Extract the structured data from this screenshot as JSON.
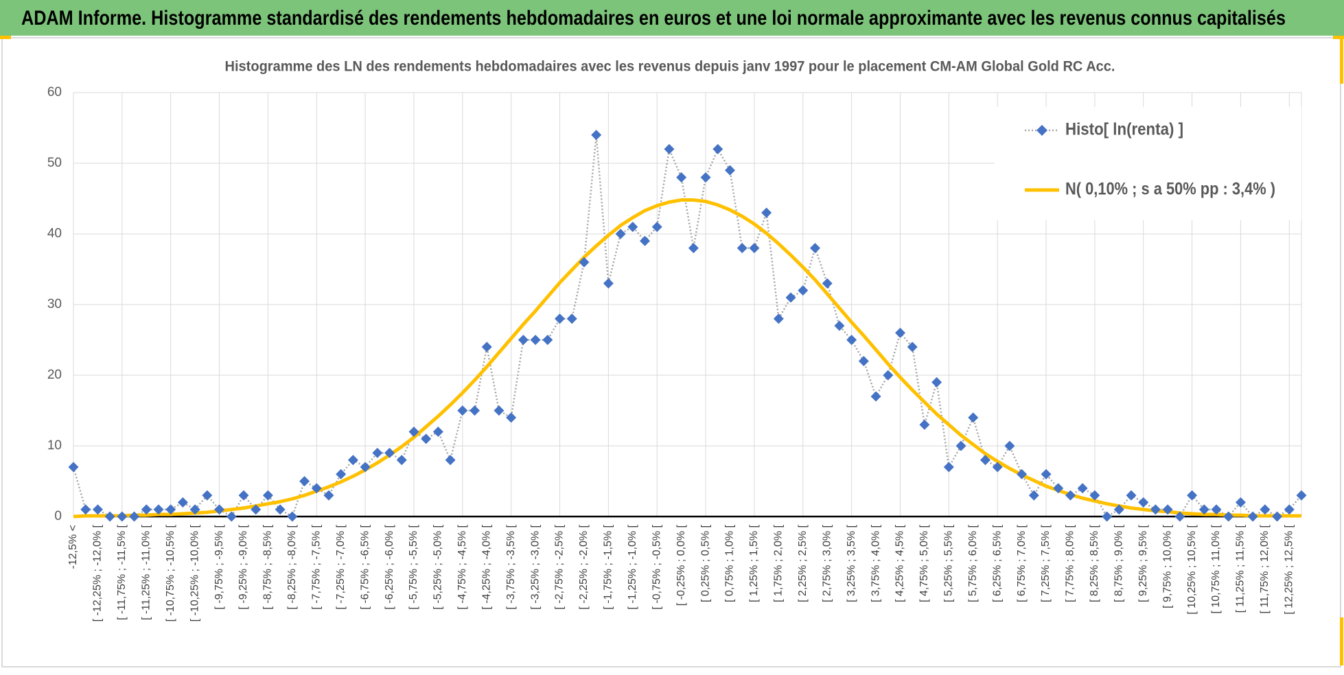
{
  "chart_data": {
    "type": "line",
    "title": "ADAM Informe. Histogramme standardisé des rendements hebdomadaires en euros et une loi normale approximante avec les revenus connus capitalisés",
    "subtitle": "Histogramme des LN des rendements hebdomadaires avec les revenus depuis janv 1997 pour le placement CM-AM Global Gold RC Acc.",
    "categories": [
      "-12,5% <",
      null,
      "[ -12,25% ; -12,0% [",
      null,
      "[ -11,75% ; -11,5% [",
      null,
      "[ -11,25% ; -11,0% [",
      null,
      "[ -10,75% ; -10,5% [",
      null,
      "[ -10,25% ; -10,0% [",
      null,
      "[ -9,75% ; -9,5% [",
      null,
      "[ -9,25% ; -9,0% [",
      null,
      "[ -8,75% ; -8,5% [",
      null,
      "[ -8,25% ; -8,0% [",
      null,
      "[ -7,75% ; -7,5% [",
      null,
      "[ -7,25% ; -7,0% [",
      null,
      "[ -6,75% ; -6,5% [",
      null,
      "[ -6,25% ; -6,0% [",
      null,
      "[ -5,75% ; -5,5% [",
      null,
      "[ -5,25% ; -5,0% [",
      null,
      "[ -4,75% ; -4,5% [",
      null,
      "[ -4,25% ; -4,0% [",
      null,
      "[ -3,75% ; -3,5% [",
      null,
      "[ -3,25% ; -3,0% [",
      null,
      "[ -2,75% ; -2,5% [",
      null,
      "[ -2,25% ; -2,0% [",
      null,
      "[ -1,75% ; -1,5% [",
      null,
      "[ -1,25% ; -1,0% [",
      null,
      "[ -0,75% ; -0,5% [",
      null,
      "[ -0,25% ; 0,0% [",
      null,
      "[ 0,25% ; 0,5% [",
      null,
      "[ 0,75% ; 1,0% [",
      null,
      "[ 1,25% ; 1,5% [",
      null,
      "[ 1,75% ; 2,0% [",
      null,
      "[ 2,25% ; 2,5% [",
      null,
      "[ 2,75% ; 3,0% [",
      null,
      "[ 3,25% ; 3,5% [",
      null,
      "[ 3,75% ; 4,0% [",
      null,
      "[ 4,25% ; 4,5% [",
      null,
      "[ 4,75% ; 5,0% [",
      null,
      "[ 5,25% ; 5,5% [",
      null,
      "[ 5,75% ; 6,0% [",
      null,
      "[ 6,25% ; 6,5% [",
      null,
      "[ 6,75% ; 7,0% [",
      null,
      "[ 7,25% ; 7,5% [",
      null,
      "[ 7,75% ; 8,0% [",
      null,
      "[ 8,25% ; 8,5% [",
      null,
      "[ 8,75% ; 9,0% [",
      null,
      "[ 9,25% ; 9,5% [",
      null,
      "[ 9,75% ; 10,0% [",
      null,
      "[ 10,25% ; 10,5% [",
      null,
      "[ 10,75% ; 11,0% [",
      null,
      "[ 11,25% ; 11,5% [",
      null,
      "[ 11,75% ; 12,0% [",
      null,
      "[ 12,25% ; 12,5% [",
      null
    ],
    "series": [
      {
        "name": "Histo[ ln(renta) ]",
        "color": "#4472c4",
        "line_color": "#a5a5a5",
        "values": [
          7,
          1,
          1,
          0,
          0,
          0,
          1,
          1,
          1,
          2,
          1,
          3,
          1,
          0,
          3,
          1,
          3,
          1,
          0,
          5,
          4,
          3,
          6,
          8,
          7,
          9,
          9,
          8,
          12,
          11,
          12,
          8,
          15,
          15,
          24,
          15,
          14,
          25,
          25,
          25,
          28,
          28,
          36,
          54,
          33,
          40,
          41,
          39,
          41,
          52,
          48,
          38,
          48,
          52,
          49,
          38,
          38,
          43,
          28,
          31,
          32,
          38,
          33,
          27,
          25,
          22,
          17,
          20,
          26,
          24,
          13,
          19,
          7,
          10,
          14,
          8,
          7,
          10,
          6,
          3,
          6,
          4,
          3,
          4,
          3,
          0,
          1,
          3,
          2,
          1,
          1,
          0,
          3,
          1,
          1,
          0,
          2,
          0,
          1,
          0,
          1,
          3
        ]
      },
      {
        "name": "N( 0,10% ; s a 50% pp : 3,4% )",
        "color": "#ffc000",
        "values": [
          0.0,
          0.1,
          0.1,
          0.1,
          0.1,
          0.2,
          0.2,
          0.3,
          0.3,
          0.4,
          0.5,
          0.6,
          0.8,
          1.0,
          1.2,
          1.5,
          1.8,
          2.1,
          2.5,
          3.0,
          3.6,
          4.2,
          4.9,
          5.7,
          6.6,
          7.6,
          8.7,
          9.9,
          11.2,
          12.7,
          14.2,
          15.8,
          17.5,
          19.3,
          21.2,
          23.2,
          25.2,
          27.2,
          29.1,
          31.1,
          33.1,
          34.9,
          36.7,
          38.3,
          39.8,
          41.2,
          42.3,
          43.3,
          44.0,
          44.5,
          44.8,
          44.8,
          44.6,
          44.1,
          43.4,
          42.5,
          41.4,
          40.1,
          38.6,
          37.0,
          35.3,
          33.5,
          31.5,
          29.5,
          27.5,
          25.6,
          23.6,
          21.6,
          19.7,
          17.9,
          16.2,
          14.5,
          13.0,
          11.5,
          10.2,
          8.9,
          7.8,
          6.8,
          5.9,
          5.1,
          4.3,
          3.7,
          3.1,
          2.6,
          2.2,
          1.8,
          1.5,
          1.2,
          1.0,
          0.8,
          0.7,
          0.5,
          0.4,
          0.3,
          0.3,
          0.2,
          0.2,
          0.1,
          0.1,
          0.1,
          0.1,
          0.1
        ]
      }
    ],
    "ylim": [
      0,
      60
    ],
    "yticks": [
      0,
      10,
      20,
      30,
      40,
      50,
      60
    ],
    "grid": true,
    "legend": "upper-right"
  }
}
